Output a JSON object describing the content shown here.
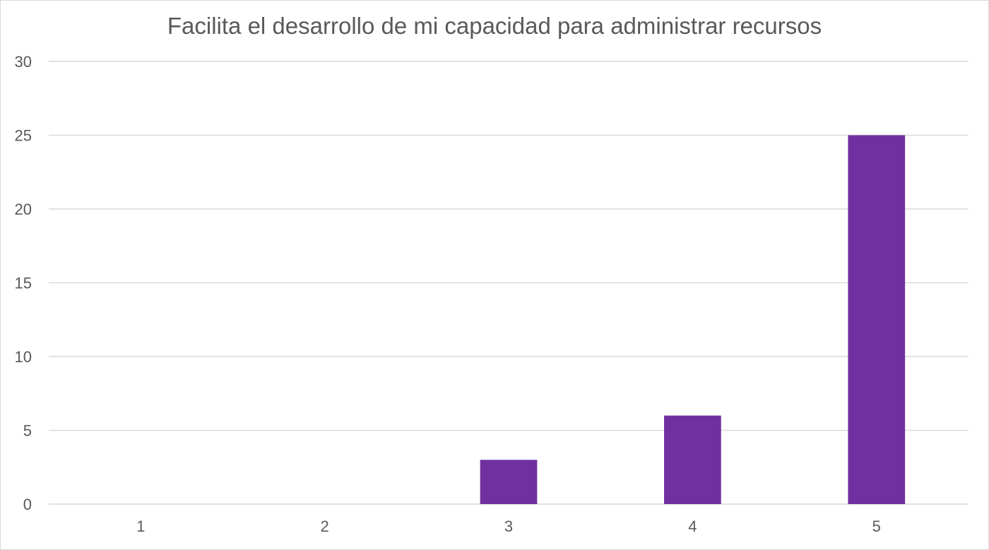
{
  "chart_data": {
    "type": "bar",
    "title": "Facilita el desarrollo de mi capacidad para administrar recursos",
    "categories": [
      "1",
      "2",
      "3",
      "4",
      "5"
    ],
    "values": [
      0,
      0,
      3,
      6,
      25
    ],
    "ylim": [
      0,
      30
    ],
    "yticks": [
      "0",
      "5",
      "10",
      "15",
      "20",
      "25",
      "30"
    ],
    "grid": true,
    "legend": "none",
    "bar_color": "#7030a0",
    "gridline_color": "#d9d9d9",
    "text_color": "#595959"
  }
}
